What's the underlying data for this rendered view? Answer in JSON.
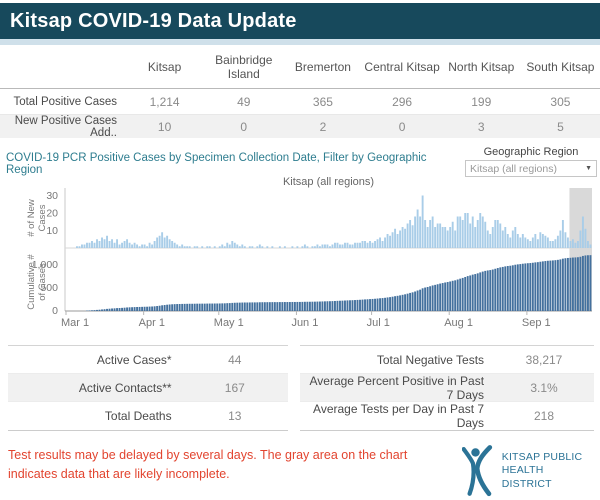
{
  "header": {
    "title": "Kitsap COVID-19 Data Update"
  },
  "region_table": {
    "columns": [
      "Kitsap",
      "Bainbridge Island",
      "Bremerton",
      "Central Kitsap",
      "North Kitsap",
      "South Kitsap"
    ],
    "rows": [
      {
        "label": "Total Positive Cases",
        "values": [
          "1,214",
          "49",
          "365",
          "296",
          "199",
          "305"
        ]
      },
      {
        "label": "New Positive Cases Add..",
        "values": [
          "10",
          "0",
          "2",
          "0",
          "3",
          "5"
        ]
      }
    ]
  },
  "chart": {
    "title": "COVID-19 PCR Positive Cases by Specimen Collection Date, Filter by Geographic Region",
    "filter_label": "Geographic Region",
    "filter_value": "Kitsap (all regions)",
    "subtitle": "Kitsap (all regions)"
  },
  "chart_data": {
    "type": "bar",
    "title": "Kitsap (all regions)",
    "x_tick_labels": [
      "Mar 1",
      "Apr 1",
      "May 1",
      "Jun 1",
      "Jul 1",
      "Aug 1",
      "Sep 1"
    ],
    "month_start_indexes": [
      0,
      31,
      61,
      92,
      122,
      153,
      184
    ],
    "y1": {
      "label": "# of New Cases",
      "ticks": [
        10,
        20,
        30
      ],
      "max": 34
    },
    "y2": {
      "label": "Cumulative # of Cases",
      "ticks": [
        0,
        500,
        1000
      ],
      "final_total": 1214
    },
    "incomplete_from_index": 201,
    "daily_new_cases": [
      0,
      0,
      0,
      0,
      1,
      1,
      2,
      2,
      3,
      3,
      4,
      3,
      5,
      4,
      6,
      5,
      7,
      4,
      5,
      3,
      5,
      2,
      3,
      4,
      5,
      3,
      2,
      3,
      2,
      1,
      2,
      2,
      1,
      3,
      2,
      4,
      6,
      7,
      9,
      6,
      7,
      5,
      4,
      3,
      2,
      1,
      2,
      1,
      1,
      1,
      0,
      1,
      1,
      0,
      1,
      0,
      1,
      1,
      0,
      1,
      0,
      1,
      2,
      1,
      3,
      2,
      4,
      3,
      2,
      1,
      2,
      1,
      0,
      1,
      1,
      0,
      1,
      2,
      1,
      0,
      1,
      0,
      1,
      0,
      0,
      1,
      0,
      1,
      0,
      0,
      1,
      0,
      1,
      0,
      1,
      2,
      1,
      0,
      1,
      1,
      2,
      1,
      2,
      2,
      2,
      1,
      2,
      3,
      3,
      2,
      2,
      3,
      3,
      2,
      2,
      3,
      3,
      3,
      4,
      4,
      3,
      4,
      3,
      4,
      5,
      6,
      4,
      6,
      8,
      7,
      9,
      11,
      8,
      10,
      12,
      11,
      14,
      16,
      13,
      18,
      22,
      18,
      30,
      16,
      12,
      16,
      18,
      12,
      14,
      14,
      12,
      12,
      10,
      12,
      15,
      10,
      18,
      18,
      16,
      20,
      20,
      14,
      18,
      12,
      16,
      20,
      18,
      15,
      10,
      8,
      12,
      16,
      16,
      14,
      10,
      12,
      8,
      6,
      10,
      12,
      8,
      6,
      8,
      6,
      5,
      4,
      6,
      8,
      5,
      9,
      8,
      7,
      6,
      4,
      4,
      5,
      7,
      10,
      16,
      9,
      6,
      4,
      5,
      3,
      4,
      10,
      18,
      11,
      4,
      2
    ],
    "colors": {
      "new_cases_bar": "#a9cde8",
      "cumulative_bar": "#44719e",
      "incomplete_zone": "#d9d9d9",
      "title_teal": "#2e7d8f",
      "header_bg": "#17495c",
      "note_red": "#e2442f"
    }
  },
  "stats": {
    "left": [
      {
        "label": "Active Cases*",
        "value": "44"
      },
      {
        "label": "Active Contacts**",
        "value": "167"
      },
      {
        "label": "Total Deaths",
        "value": "13"
      }
    ],
    "right": [
      {
        "label": "Total Negative Tests",
        "value": "38,217"
      },
      {
        "label": "Average Percent Positive in Past 7 Days",
        "value": "3.1%"
      },
      {
        "label": "Average Tests per Day in Past 7 Days",
        "value": "218"
      }
    ]
  },
  "footer": {
    "note": "Test results may be delayed by several days. The gray area on the chart indicates data that are likely incomplete.",
    "logo_line1": "KITSAP PUBLIC",
    "logo_line2": "HEALTH DISTRICT"
  }
}
